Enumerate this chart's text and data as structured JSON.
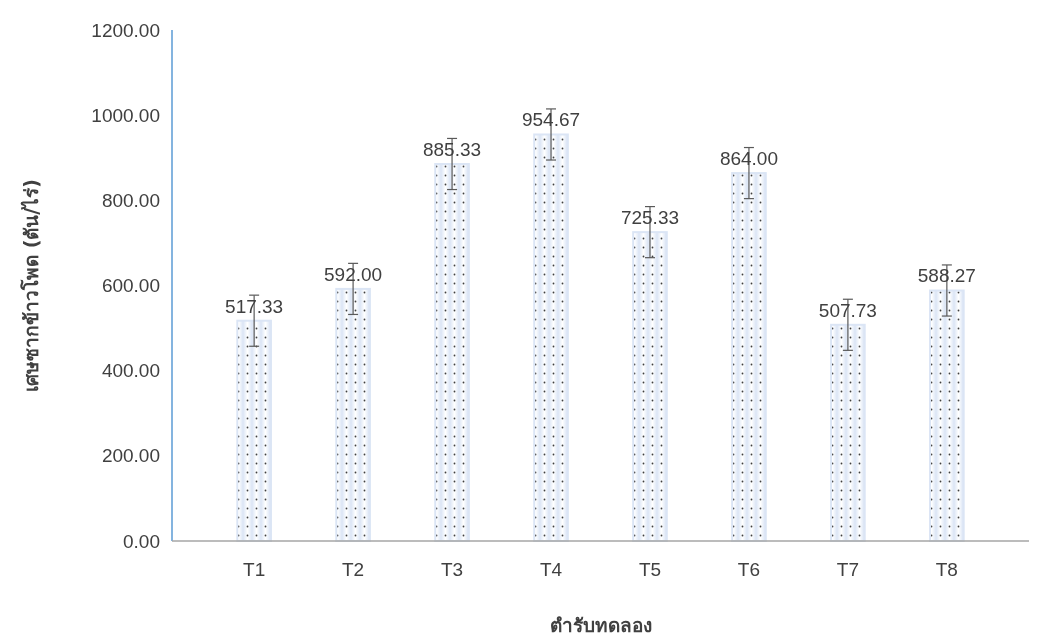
{
  "chart_data": {
    "type": "bar",
    "xlabel": "ตำรับทดลอง",
    "ylabel": "เศษซากข้าวโพด (ตัน/ไร่)",
    "categories": [
      "T1",
      "T2",
      "T3",
      "T4",
      "T5",
      "T6",
      "T7",
      "T8"
    ],
    "values": [
      517.33,
      592.0,
      885.33,
      954.67,
      725.33,
      864.0,
      507.73,
      588.27
    ],
    "errors": [
      60,
      60,
      60,
      60,
      60,
      60,
      60,
      60
    ],
    "color": "#dbe5f5",
    "value_labels": [
      "517.33",
      "592.00",
      "885.33",
      "954.67",
      "725.33",
      "864.00",
      "507.73",
      "588.27"
    ],
    "ylim": [
      0,
      1200
    ],
    "yticks": [
      {
        "value": 0,
        "label": "0.00"
      },
      {
        "value": 200,
        "label": "200.00"
      },
      {
        "value": 400,
        "label": "400.00"
      },
      {
        "value": 600,
        "label": "600.00"
      },
      {
        "value": 800,
        "label": "800.00"
      },
      {
        "value": 1000,
        "label": "1000.00"
      },
      {
        "value": 1200,
        "label": "1200.00"
      }
    ],
    "grid": false
  }
}
